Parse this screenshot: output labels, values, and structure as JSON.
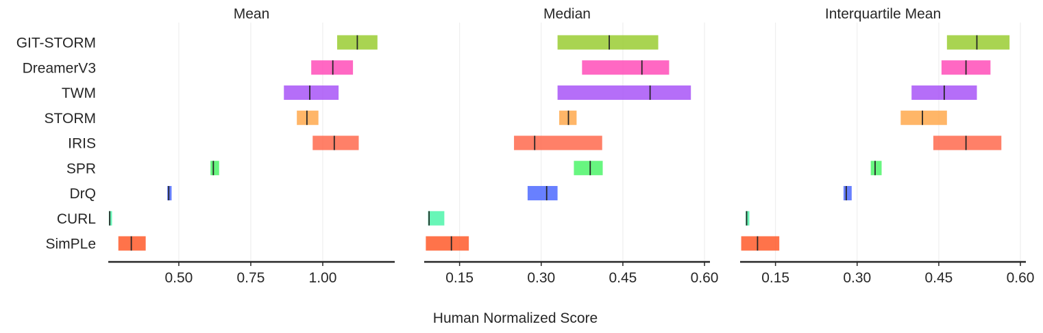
{
  "chart_data": {
    "type": "interval",
    "xlabel": "Human Normalized Score",
    "algorithms": [
      "GIT-STORM",
      "DreamerV3",
      "TWM",
      "STORM",
      "IRIS",
      "SPR",
      "DrQ",
      "CURL",
      "SimPLe"
    ],
    "colors": [
      "#9acd32",
      "#ff4db8",
      "#a855f7",
      "#ffa94d",
      "#ff6a4d",
      "#4df56a",
      "#4d6aff",
      "#4df5aa",
      "#ff5a2a"
    ],
    "panels": [
      {
        "title": "Mean",
        "xlim": [
          0.255,
          1.25
        ],
        "ticks": [
          0.5,
          0.75,
          1.0
        ],
        "tick_labels": [
          "0.50",
          "0.75",
          "1.00"
        ],
        "grid": [
          0.5,
          0.75,
          1.0
        ],
        "intervals": [
          {
            "low": 1.05,
            "point": 1.12,
            "high": 1.19
          },
          {
            "low": 0.96,
            "point": 1.035,
            "high": 1.105
          },
          {
            "low": 0.865,
            "point": 0.955,
            "high": 1.055
          },
          {
            "low": 0.91,
            "point": 0.945,
            "high": 0.985
          },
          {
            "low": 0.965,
            "point": 1.04,
            "high": 1.125
          },
          {
            "low": 0.61,
            "point": 0.62,
            "high": 0.64
          },
          {
            "low": 0.46,
            "point": 0.465,
            "high": 0.475
          },
          {
            "low": 0.257,
            "point": 0.26,
            "high": 0.268
          },
          {
            "low": 0.29,
            "point": 0.335,
            "high": 0.385
          }
        ]
      },
      {
        "title": "Median",
        "xlim": [
          0.085,
          0.61
        ],
        "ticks": [
          0.15,
          0.3,
          0.45,
          0.6
        ],
        "tick_labels": [
          "0.15",
          "0.30",
          "0.45",
          "0.60"
        ],
        "grid": [
          0.15,
          0.3,
          0.45,
          0.6
        ],
        "intervals": [
          {
            "low": 0.33,
            "point": 0.425,
            "high": 0.515
          },
          {
            "low": 0.375,
            "point": 0.485,
            "high": 0.535
          },
          {
            "low": 0.33,
            "point": 0.5,
            "high": 0.575
          },
          {
            "low": 0.333,
            "point": 0.35,
            "high": 0.365
          },
          {
            "low": 0.25,
            "point": 0.288,
            "high": 0.412
          },
          {
            "low": 0.36,
            "point": 0.39,
            "high": 0.413
          },
          {
            "low": 0.275,
            "point": 0.31,
            "high": 0.33
          },
          {
            "low": 0.092,
            "point": 0.094,
            "high": 0.122
          },
          {
            "low": 0.088,
            "point": 0.135,
            "high": 0.167
          }
        ]
      },
      {
        "title": "Interquartile Mean",
        "xlim": [
          0.085,
          0.61
        ],
        "ticks": [
          0.15,
          0.3,
          0.45,
          0.6
        ],
        "tick_labels": [
          "0.15",
          "0.30",
          "0.45",
          "0.60"
        ],
        "grid": [
          0.15,
          0.3,
          0.45,
          0.6
        ],
        "intervals": [
          {
            "low": 0.465,
            "point": 0.52,
            "high": 0.58
          },
          {
            "low": 0.455,
            "point": 0.5,
            "high": 0.545
          },
          {
            "low": 0.4,
            "point": 0.46,
            "high": 0.52
          },
          {
            "low": 0.38,
            "point": 0.42,
            "high": 0.465
          },
          {
            "low": 0.44,
            "point": 0.5,
            "high": 0.565
          },
          {
            "low": 0.325,
            "point": 0.333,
            "high": 0.345
          },
          {
            "low": 0.275,
            "point": 0.28,
            "high": 0.29
          },
          {
            "low": 0.095,
            "point": 0.097,
            "high": 0.102
          },
          {
            "low": 0.087,
            "point": 0.117,
            "high": 0.157
          }
        ]
      }
    ]
  }
}
